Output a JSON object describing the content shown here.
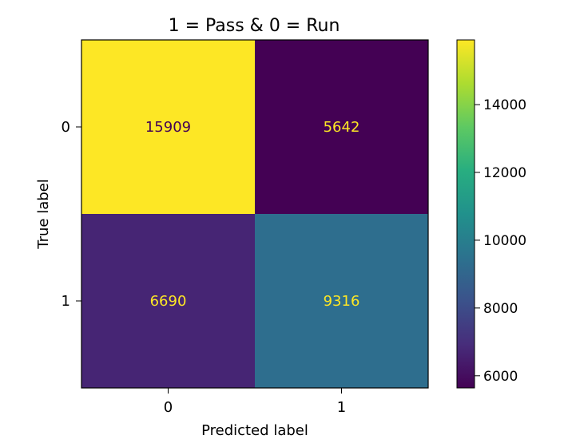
{
  "chart_data": {
    "type": "heatmap",
    "title": "1 = Pass & 0 = Run",
    "xlabel": "Predicted label",
    "ylabel": "True label",
    "x_categories": [
      "0",
      "1"
    ],
    "y_categories": [
      "0",
      "1"
    ],
    "values": [
      [
        15909,
        5642
      ],
      [
        6690,
        9316
      ]
    ],
    "colormap": "viridis",
    "colorbar": {
      "range": [
        5642,
        15909
      ],
      "ticks": [
        6000,
        8000,
        10000,
        12000,
        14000
      ],
      "tick_labels": [
        "6000",
        "8000",
        "10000",
        "12000",
        "14000"
      ]
    },
    "cell_text_colors": {
      "on_dark": "#fde725",
      "on_light": "#440154"
    },
    "grid": false
  }
}
